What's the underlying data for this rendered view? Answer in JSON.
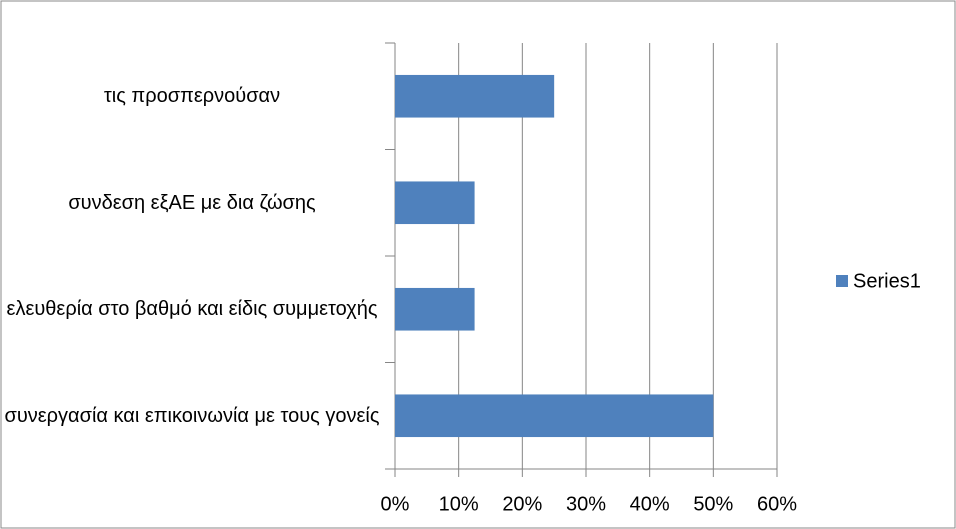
{
  "chart_data": {
    "type": "bar",
    "orientation": "horizontal",
    "categories": [
      "τις προσπερνούσαν",
      "συνδεση εξΑΕ με δια ζώσης",
      "ελευθερία στο βαθμό και είδις συμμετοχής",
      "συνεργασία και επικοινωνία με τους γονείς"
    ],
    "series": [
      {
        "name": "Series1",
        "color": "#4f81bd",
        "values": [
          25,
          12.5,
          12.5,
          50
        ]
      }
    ],
    "xlim": [
      0,
      60
    ],
    "xticks": [
      {
        "value": 0,
        "label": "0%"
      },
      {
        "value": 10,
        "label": "10%"
      },
      {
        "value": 20,
        "label": "20%"
      },
      {
        "value": 30,
        "label": "30%"
      },
      {
        "value": 40,
        "label": "40%"
      },
      {
        "value": 50,
        "label": "50%"
      },
      {
        "value": 60,
        "label": "60%"
      }
    ],
    "grid": true,
    "legend": "right"
  }
}
